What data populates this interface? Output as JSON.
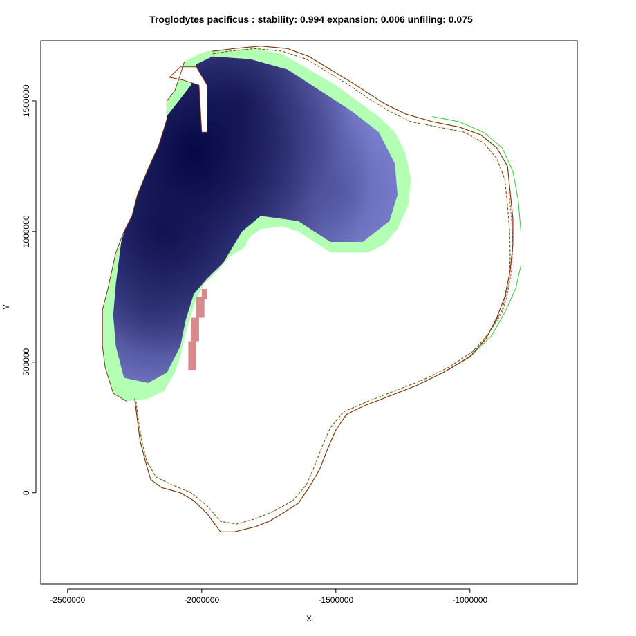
{
  "title": "Troglodytes pacificus : stability: 0.994 expansion: 0.006 unfiling: 0.075",
  "chart_data": {
    "type": "heatmap",
    "title": "Troglodytes pacificus : stability: 0.994 expansion: 0.006 unfiling: 0.075",
    "xlabel": "X",
    "ylabel": "Y",
    "xlim": [
      -2600000,
      -600000
    ],
    "ylim": [
      -350000,
      1730000
    ],
    "xticks": [
      -2500000,
      -2000000,
      -1500000,
      -1000000
    ],
    "xtick_labels": [
      "-2500000",
      "-2000000",
      "-1500000",
      "-1000000"
    ],
    "yticks": [
      0,
      500000,
      1000000,
      1500000
    ],
    "ytick_labels": [
      "0",
      "500000",
      "1000000",
      "1500000"
    ],
    "statistics": {
      "stability": 0.994,
      "expansion": 0.006,
      "unfiling": 0.075
    },
    "colors": {
      "stability_low": "#8a8ee0",
      "stability_high": "#060845",
      "expansion": "#b3ffb3",
      "unfilling": "#d88a8a",
      "contour_solid": "#7a3a10",
      "contour_green": "#33cc33",
      "contour_red": "#cc3333"
    },
    "stability_hotspots": [
      {
        "x": -2030000,
        "y": 1300000,
        "v": 1.0
      },
      {
        "x": -2150000,
        "y": 1000000,
        "v": 0.8
      },
      {
        "x": -1850000,
        "y": 1500000,
        "v": 0.65
      },
      {
        "x": -2200000,
        "y": 700000,
        "v": 0.3
      },
      {
        "x": -1470000,
        "y": 1150000,
        "v": 0.3
      }
    ],
    "occupied_outline": [
      [
        -2065000,
        1650000
      ],
      [
        -2010000,
        1680000
      ],
      [
        -1980000,
        1690000
      ],
      [
        -1800000,
        1700000
      ],
      [
        -1700000,
        1680000
      ],
      [
        -1600000,
        1620000
      ],
      [
        -1500000,
        1560000
      ],
      [
        -1420000,
        1500000
      ],
      [
        -1340000,
        1440000
      ],
      [
        -1280000,
        1380000
      ],
      [
        -1240000,
        1300000
      ],
      [
        -1220000,
        1200000
      ],
      [
        -1230000,
        1100000
      ],
      [
        -1270000,
        1010000
      ],
      [
        -1320000,
        950000
      ],
      [
        -1380000,
        920000
      ],
      [
        -1520000,
        920000
      ],
      [
        -1580000,
        960000
      ],
      [
        -1640000,
        1000000
      ],
      [
        -1700000,
        1020000
      ],
      [
        -1780000,
        1010000
      ],
      [
        -1820000,
        980000
      ],
      [
        -1840000,
        940000
      ],
      [
        -1900000,
        900000
      ],
      [
        -1930000,
        860000
      ],
      [
        -1990000,
        800000
      ],
      [
        -2020000,
        740000
      ],
      [
        -2040000,
        680000
      ],
      [
        -2060000,
        610000
      ],
      [
        -2080000,
        520000
      ],
      [
        -2100000,
        460000
      ],
      [
        -2140000,
        390000
      ],
      [
        -2200000,
        360000
      ],
      [
        -2280000,
        350000
      ],
      [
        -2330000,
        380000
      ],
      [
        -2360000,
        480000
      ],
      [
        -2370000,
        560000
      ],
      [
        -2370000,
        700000
      ],
      [
        -2350000,
        780000
      ],
      [
        -2320000,
        920000
      ],
      [
        -2290000,
        1000000
      ],
      [
        -2260000,
        1060000
      ],
      [
        -2240000,
        1140000
      ],
      [
        -2200000,
        1240000
      ],
      [
        -2160000,
        1330000
      ],
      [
        -2130000,
        1430000
      ],
      [
        -2130000,
        1500000
      ],
      [
        -2100000,
        1540000
      ],
      [
        -2080000,
        1600000
      ]
    ],
    "stable_inner_edge": [
      [
        -2260000,
        1270000
      ],
      [
        -2240000,
        1160000
      ],
      [
        -2270000,
        1060000
      ],
      [
        -2300000,
        960000
      ],
      [
        -2320000,
        800000
      ],
      [
        -2330000,
        680000
      ],
      [
        -2320000,
        560000
      ],
      [
        -2290000,
        440000
      ],
      [
        -2200000,
        420000
      ],
      [
        -2130000,
        460000
      ],
      [
        -2080000,
        560000
      ],
      [
        -2060000,
        660000
      ],
      [
        -2030000,
        760000
      ],
      [
        -1980000,
        820000
      ],
      [
        -1920000,
        880000
      ],
      [
        -1850000,
        1000000
      ],
      [
        -1780000,
        1060000
      ],
      [
        -1640000,
        1040000
      ],
      [
        -1520000,
        960000
      ],
      [
        -1400000,
        960000
      ],
      [
        -1300000,
        1040000
      ],
      [
        -1270000,
        1140000
      ],
      [
        -1280000,
        1260000
      ],
      [
        -1340000,
        1380000
      ],
      [
        -1440000,
        1460000
      ],
      [
        -1560000,
        1540000
      ],
      [
        -1680000,
        1620000
      ],
      [
        -1820000,
        1660000
      ],
      [
        -1960000,
        1670000
      ],
      [
        -2020000,
        1640000
      ],
      [
        -2040000,
        1560000
      ]
    ],
    "notch_polygon": [
      [
        -2080000,
        1630000
      ],
      [
        -2020000,
        1630000
      ],
      [
        -1980000,
        1560000
      ],
      [
        -1980000,
        1380000
      ],
      [
        -2000000,
        1380000
      ],
      [
        -2010000,
        1560000
      ],
      [
        -2070000,
        1580000
      ],
      [
        -2120000,
        1590000
      ]
    ],
    "unfilling_cells": [
      [
        -2050000,
        470000,
        30000,
        110000
      ],
      [
        -2040000,
        580000,
        30000,
        90000
      ],
      [
        -2020000,
        670000,
        30000,
        80000
      ],
      [
        -2000000,
        740000,
        20000,
        40000
      ]
    ],
    "contour_solid": [
      [
        -2250000,
        360000
      ],
      [
        -2240000,
        280000
      ],
      [
        -2230000,
        200000
      ],
      [
        -2210000,
        120000
      ],
      [
        -2190000,
        50000
      ],
      [
        -2150000,
        20000
      ],
      [
        -2080000,
        0
      ],
      [
        -2030000,
        -30000
      ],
      [
        -1980000,
        -80000
      ],
      [
        -1930000,
        -150000
      ],
      [
        -1880000,
        -150000
      ],
      [
        -1800000,
        -130000
      ],
      [
        -1750000,
        -110000
      ],
      [
        -1700000,
        -80000
      ],
      [
        -1640000,
        -40000
      ],
      [
        -1600000,
        20000
      ],
      [
        -1560000,
        90000
      ],
      [
        -1530000,
        170000
      ],
      [
        -1500000,
        240000
      ],
      [
        -1460000,
        300000
      ],
      [
        -1400000,
        330000
      ],
      [
        -1300000,
        370000
      ],
      [
        -1200000,
        410000
      ],
      [
        -1100000,
        460000
      ],
      [
        -1000000,
        520000
      ],
      [
        -940000,
        590000
      ],
      [
        -900000,
        670000
      ],
      [
        -870000,
        750000
      ],
      [
        -850000,
        850000
      ],
      [
        -840000,
        950000
      ],
      [
        -840000,
        1050000
      ],
      [
        -850000,
        1150000
      ],
      [
        -860000,
        1250000
      ],
      [
        -900000,
        1320000
      ],
      [
        -960000,
        1370000
      ],
      [
        -1040000,
        1400000
      ],
      [
        -1140000,
        1420000
      ],
      [
        -1240000,
        1450000
      ],
      [
        -1320000,
        1490000
      ],
      [
        -1380000,
        1530000
      ],
      [
        -1440000,
        1570000
      ],
      [
        -1520000,
        1620000
      ],
      [
        -1600000,
        1670000
      ],
      [
        -1680000,
        1700000
      ],
      [
        -1780000,
        1710000
      ],
      [
        -1880000,
        1700000
      ],
      [
        -1960000,
        1690000
      ]
    ],
    "contour_dashed": [
      [
        -2245000,
        350000
      ],
      [
        -2235000,
        270000
      ],
      [
        -2222000,
        190000
      ],
      [
        -2205000,
        120000
      ],
      [
        -2170000,
        60000
      ],
      [
        -2110000,
        30000
      ],
      [
        -2040000,
        0
      ],
      [
        -1980000,
        -50000
      ],
      [
        -1930000,
        -110000
      ],
      [
        -1870000,
        -120000
      ],
      [
        -1800000,
        -100000
      ],
      [
        -1730000,
        -70000
      ],
      [
        -1660000,
        -30000
      ],
      [
        -1610000,
        30000
      ],
      [
        -1580000,
        100000
      ],
      [
        -1550000,
        180000
      ],
      [
        -1520000,
        250000
      ],
      [
        -1470000,
        310000
      ],
      [
        -1380000,
        350000
      ],
      [
        -1280000,
        390000
      ],
      [
        -1180000,
        430000
      ],
      [
        -1080000,
        480000
      ],
      [
        -990000,
        540000
      ],
      [
        -930000,
        610000
      ],
      [
        -880000,
        700000
      ],
      [
        -855000,
        800000
      ],
      [
        -850000,
        900000
      ],
      [
        -852000,
        1000000
      ],
      [
        -860000,
        1100000
      ],
      [
        -870000,
        1200000
      ],
      [
        -900000,
        1280000
      ],
      [
        -950000,
        1340000
      ],
      [
        -1020000,
        1380000
      ],
      [
        -1120000,
        1400000
      ],
      [
        -1220000,
        1420000
      ],
      [
        -1300000,
        1460000
      ],
      [
        -1380000,
        1510000
      ],
      [
        -1450000,
        1560000
      ],
      [
        -1530000,
        1610000
      ],
      [
        -1610000,
        1660000
      ],
      [
        -1700000,
        1690000
      ],
      [
        -1800000,
        1700000
      ],
      [
        -1900000,
        1690000
      ],
      [
        -1960000,
        1680000
      ]
    ],
    "contour_green": [
      [
        -1100000,
        460000
      ],
      [
        -1000000,
        520000
      ],
      [
        -920000,
        600000
      ],
      [
        -870000,
        690000
      ],
      [
        -830000,
        780000
      ],
      [
        -810000,
        870000
      ],
      [
        -810000,
        1000000
      ],
      [
        -820000,
        1120000
      ],
      [
        -840000,
        1230000
      ],
      [
        -880000,
        1320000
      ],
      [
        -950000,
        1380000
      ],
      [
        -1040000,
        1420000
      ],
      [
        -1140000,
        1440000
      ]
    ],
    "contour_red": [
      [
        -1080000,
        470000
      ],
      [
        -990000,
        530000
      ],
      [
        -930000,
        610000
      ],
      [
        -880000,
        690000
      ],
      [
        -860000,
        760000
      ],
      [
        -845000,
        850000
      ],
      [
        -840000,
        950000
      ],
      [
        -845000,
        1050000
      ],
      [
        -855000,
        1150000
      ]
    ]
  }
}
